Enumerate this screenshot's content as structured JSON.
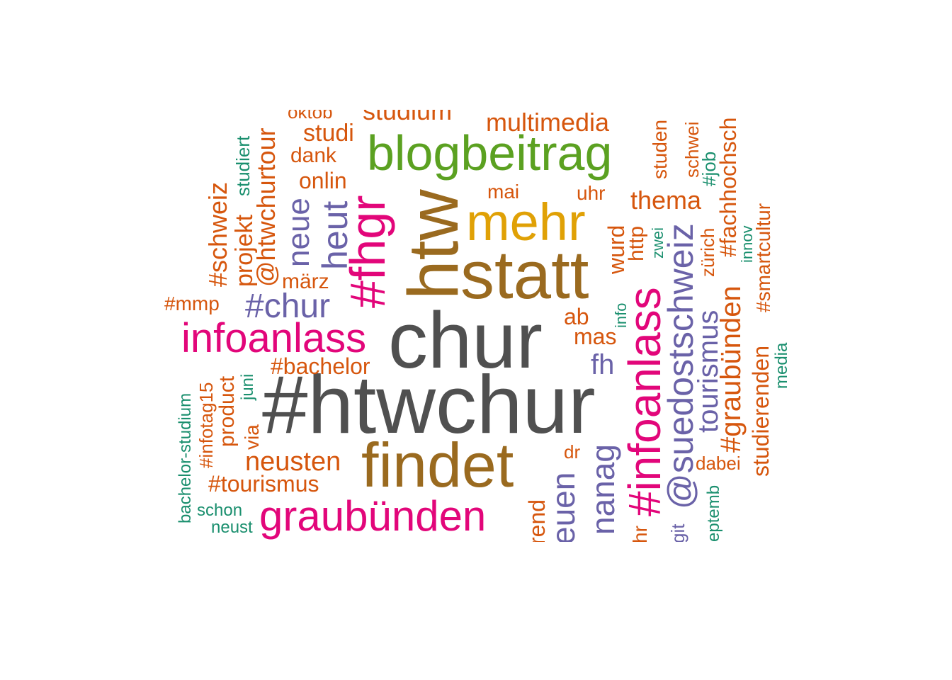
{
  "colors": {
    "gray": "#505050",
    "brown": "#9a6a1f",
    "mustard": "#e0a106",
    "green": "#5ba121",
    "magenta": "#e2067a",
    "purple": "#6a62a8",
    "orange": "#d6560d",
    "teal": "#1a8f6e"
  },
  "words": {
    "htwchur_tag": "#htwchur",
    "chur": "chur",
    "statt": "statt",
    "htw": "htw",
    "findet": "findet",
    "mehr": "mehr",
    "blogbeitrag": "blogbeitrag",
    "infoanlass": "infoanlass",
    "infoanlass_tag": "#infoanlass",
    "graubuenden": "graubünden",
    "fhgr_tag": "#fhgr",
    "chur_tag": "#chur",
    "suedostschweiz": "@suedostschweiz",
    "heut": "heut",
    "neue": "neue",
    "neuen_partial": "euen",
    "manag_partial": "nanag",
    "tourismus": "tourismus",
    "graubuenden_tag": "#graubünden",
    "thema": "thema",
    "multimedia": "multimedia",
    "studium_partial": "studium",
    "studi": "studi",
    "oktob_partial": "oktob",
    "dank": "dank",
    "onlin": "onlin",
    "mai": "mai",
    "uhr": "uhr",
    "studen": "studen",
    "schwei_partial": "schwei",
    "fachhochsch_tag": "#fachhochsch",
    "job_tag": "#job",
    "htwchurtour": "@htwchurtour",
    "studiert": "studiert",
    "projekt": "projekt",
    "schweiz_tag": "#schweiz",
    "maerz": "märz",
    "mmp_tag": "#mmp",
    "bachelor_tag": "#bachelor",
    "wurd": "wurd",
    "http": "http",
    "zwei": "zwei",
    "zuerich": "zürich",
    "innov": "innov",
    "smartcultur_tag": "#smartcultur",
    "ab": "ab",
    "mas": "mas",
    "info": "info",
    "fh": "fh",
    "media": "media",
    "studierenden": "studierenden",
    "dabei": "dabei",
    "dr": "dr",
    "neusten": "neusten",
    "tourismus_tag": "#tourismus",
    "bachelor_studium": "bachelor-studium",
    "infotag15_tag": "#infotag15",
    "product": "product",
    "juni": "juni",
    "via": "via",
    "schon": "schon",
    "neust": "neust",
    "septemb_partial": "eptemb",
    "trend_partial": "rend",
    "jahr_partial": "hr",
    "digit_partial": "git"
  }
}
